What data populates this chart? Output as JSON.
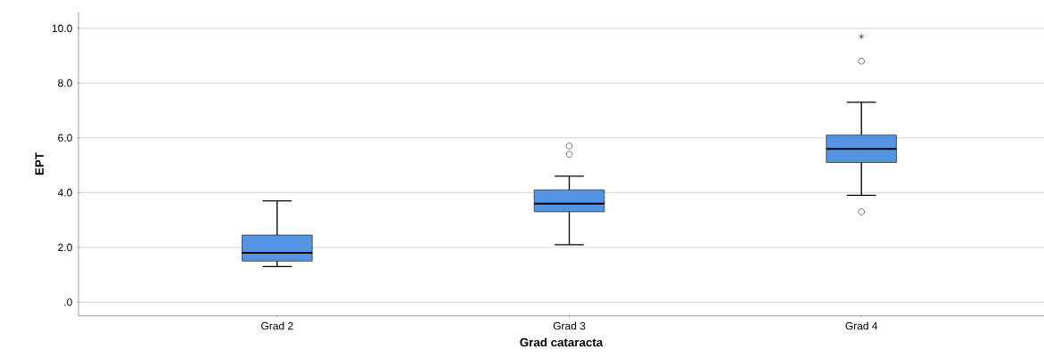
{
  "chart_data": {
    "type": "box",
    "xlabel": "Grad cataracta",
    "ylabel": "EPT",
    "categories": [
      "Grad 2",
      "Grad 3",
      "Grad 4"
    ],
    "color": "#5594e2",
    "boxes": [
      {
        "low": 1.3,
        "q1": 1.5,
        "median": 1.8,
        "q3": 2.45,
        "high": 3.7
      },
      {
        "low": 2.1,
        "q1": 3.3,
        "median": 3.6,
        "q3": 4.1,
        "high": 4.6,
        "outliers": [
          5.4,
          5.7
        ]
      },
      {
        "low": 3.9,
        "q1": 5.1,
        "median": 5.6,
        "q3": 6.1,
        "high": 7.3,
        "outliers": [
          3.3,
          8.8,
          9.7
        ]
      }
    ],
    "ylim": [
      -0.5,
      10.6
    ],
    "yticks": [
      {
        "value": 0,
        "label": ".0"
      },
      {
        "value": 2,
        "label": "2.0"
      },
      {
        "value": 4,
        "label": "4.0"
      },
      {
        "value": 6,
        "label": "6.0"
      },
      {
        "value": 8,
        "label": "8.0"
      },
      {
        "value": 10,
        "label": "10.0"
      }
    ],
    "grid": "y"
  }
}
